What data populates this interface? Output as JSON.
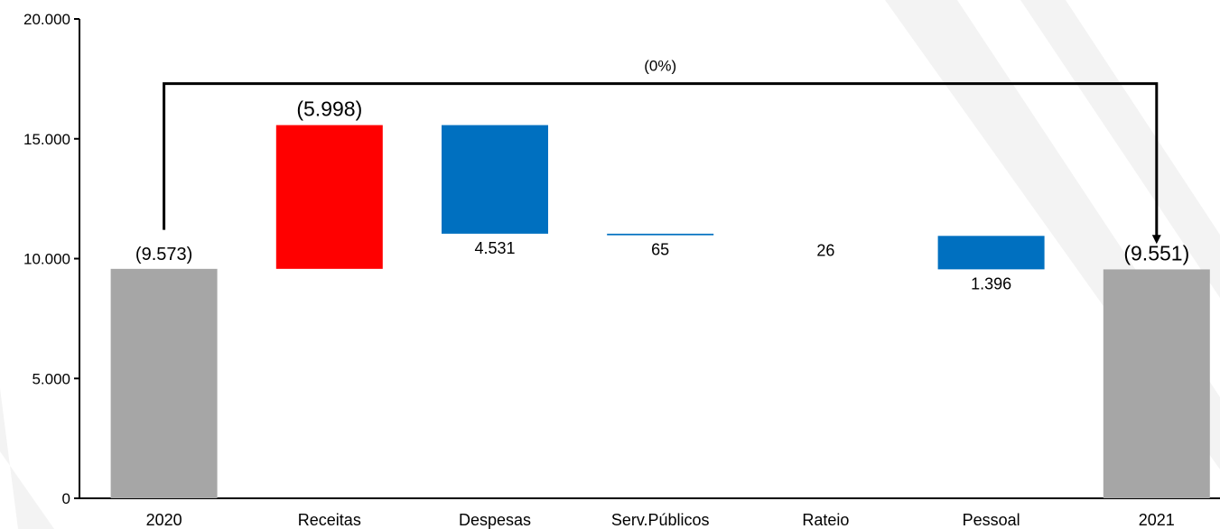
{
  "chart_data": {
    "type": "bar",
    "categories": [
      "2020",
      "Receitas",
      "Despesas",
      "Serv.Públicos",
      "Rateio",
      "Pessoal",
      "2021"
    ],
    "bars": [
      {
        "category": "2020",
        "base": 0,
        "top": 9573,
        "label": "(9.573)",
        "color": "#a6a6a6",
        "label_pos": "above"
      },
      {
        "category": "Receitas",
        "base": 9573,
        "top": 15571,
        "label": "(5.998)",
        "color": "#ff0000",
        "label_pos": "above"
      },
      {
        "category": "Despesas",
        "base": 11040,
        "top": 15571,
        "label": "4.531",
        "color": "#0070c0",
        "label_pos": "below"
      },
      {
        "category": "Serv.Públicos",
        "base": 10975,
        "top": 11040,
        "label": "65",
        "color": "#0070c0",
        "label_pos": "below"
      },
      {
        "category": "Rateio",
        "base": 10949,
        "top": 10975,
        "label": "26",
        "color": "#0070c0",
        "label_pos": "below"
      },
      {
        "category": "Pessoal",
        "base": 9553,
        "top": 10949,
        "label": "1.396",
        "color": "#0070c0",
        "label_pos": "below"
      },
      {
        "category": "2021",
        "base": 0,
        "top": 9551,
        "label": "(9.551)",
        "color": "#a6a6a6",
        "label_pos": "above"
      }
    ],
    "y_ticks": [
      {
        "value": 0,
        "label": "0"
      },
      {
        "value": 5000,
        "label": "5.000"
      },
      {
        "value": 10000,
        "label": "10.000"
      },
      {
        "value": 15000,
        "label": "15.000"
      },
      {
        "value": 20000,
        "label": "20.000"
      }
    ],
    "ylim": [
      0,
      20000
    ],
    "bracket": {
      "from": "2020",
      "to": "2021",
      "level": 17300,
      "from_start": 11200,
      "to_end": 10500,
      "label": "(0%)"
    },
    "title": "",
    "xlabel": "",
    "ylabel": "",
    "grid": false,
    "legend": "none"
  }
}
